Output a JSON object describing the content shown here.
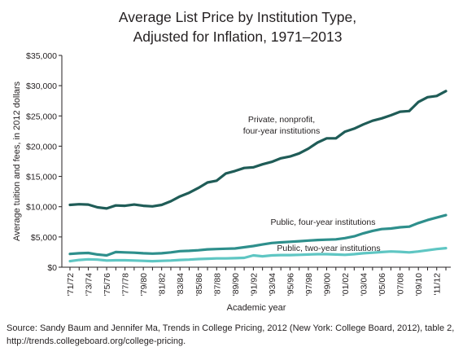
{
  "chart_data": {
    "type": "line",
    "title_lines": [
      "Average List Price by Institution Type,",
      "Adjusted for Inflation, 1971–2013"
    ],
    "xlabel": "Academic year",
    "ylabel": "Average tuition and fees, in 2012 dollars",
    "ylim": [
      0,
      35000
    ],
    "yticks": [
      0,
      5000,
      10000,
      15000,
      20000,
      25000,
      30000,
      35000
    ],
    "ytick_labels": [
      "$0",
      "$5,000",
      "$10,000",
      "$15,000",
      "$20,000",
      "$25,000",
      "$30,000",
      "$35,000"
    ],
    "x": [
      "'71/72",
      "'72/73",
      "'73/74",
      "'74/75",
      "'75/76",
      "'76/77",
      "'77/78",
      "'78/79",
      "'79/80",
      "'80/81",
      "'81/82",
      "'82/83",
      "'83/84",
      "'84/85",
      "'85/86",
      "'86/87",
      "'87/88",
      "'88/89",
      "'89/90",
      "'90/91",
      "'91/92",
      "'92/93",
      "'93/94",
      "'94/95",
      "'95/96",
      "'96/97",
      "'97/98",
      "'98/99",
      "'99/00",
      "'00/01",
      "'01/02",
      "'02/03",
      "'03/04",
      "'04/05",
      "'05/06",
      "'06/07",
      "'07/08",
      "'08/09",
      "'09/10",
      "'10/11",
      "'11/12",
      "'12/13"
    ],
    "xtick_labels": [
      "'71/72",
      "'73/74",
      "'75/76",
      "'77/78",
      "'79/80",
      "'81/82",
      "'83/84",
      "'85/86",
      "'87/88",
      "'89/90",
      "'91/92",
      "'93/94",
      "'95/96",
      "'97/98",
      "'99/00",
      "'01/02",
      "'03/04",
      "'05/06",
      "'07/08",
      "'09/10",
      "'11/12"
    ],
    "grid": false,
    "series": [
      {
        "name": "Private, nonprofit, four-year institutions",
        "label_lines": [
          "Private, nonprofit,",
          "four-year institutions"
        ],
        "color": "#1f5c57",
        "values": [
          10300,
          10400,
          10350,
          9900,
          9700,
          10200,
          10150,
          10350,
          10150,
          10050,
          10300,
          10900,
          11700,
          12300,
          13100,
          14000,
          14300,
          15500,
          15900,
          16400,
          16500,
          17000,
          17400,
          18000,
          18300,
          18800,
          19600,
          20600,
          21300,
          21300,
          22400,
          22900,
          23600,
          24200,
          24600,
          25100,
          25700,
          25800,
          27300,
          28100,
          28300,
          29100
        ]
      },
      {
        "name": "Public, four-year institutions",
        "label_lines": [
          "Public, four-year institutions"
        ],
        "color": "#2e8f8c",
        "values": [
          2200,
          2300,
          2350,
          2100,
          1950,
          2500,
          2450,
          2400,
          2300,
          2250,
          2300,
          2450,
          2650,
          2700,
          2800,
          2950,
          3000,
          3050,
          3100,
          3300,
          3500,
          3750,
          4000,
          4100,
          4200,
          4300,
          4400,
          4500,
          4550,
          4600,
          4800,
          5100,
          5600,
          6000,
          6300,
          6400,
          6600,
          6700,
          7300,
          7800,
          8200,
          8600
        ]
      },
      {
        "name": "Public, two-year institutions",
        "label_lines": [
          "Public, two-year institutions"
        ],
        "color": "#5fc6c3",
        "values": [
          1000,
          1200,
          1300,
          1250,
          1100,
          1150,
          1150,
          1100,
          1050,
          1000,
          1050,
          1100,
          1200,
          1250,
          1350,
          1400,
          1450,
          1450,
          1500,
          1550,
          1950,
          1800,
          1950,
          2000,
          2000,
          2050,
          2100,
          2150,
          2150,
          2100,
          2050,
          2150,
          2300,
          2400,
          2500,
          2600,
          2550,
          2450,
          2600,
          2800,
          3000,
          3150
        ]
      }
    ]
  },
  "source_text": "Source: Sandy Baum and Jennifer Ma, Trends in College Pricing, 2012 (New York: College Board, 2012), table 2, http://trends.collegeboard.org/college-pricing."
}
